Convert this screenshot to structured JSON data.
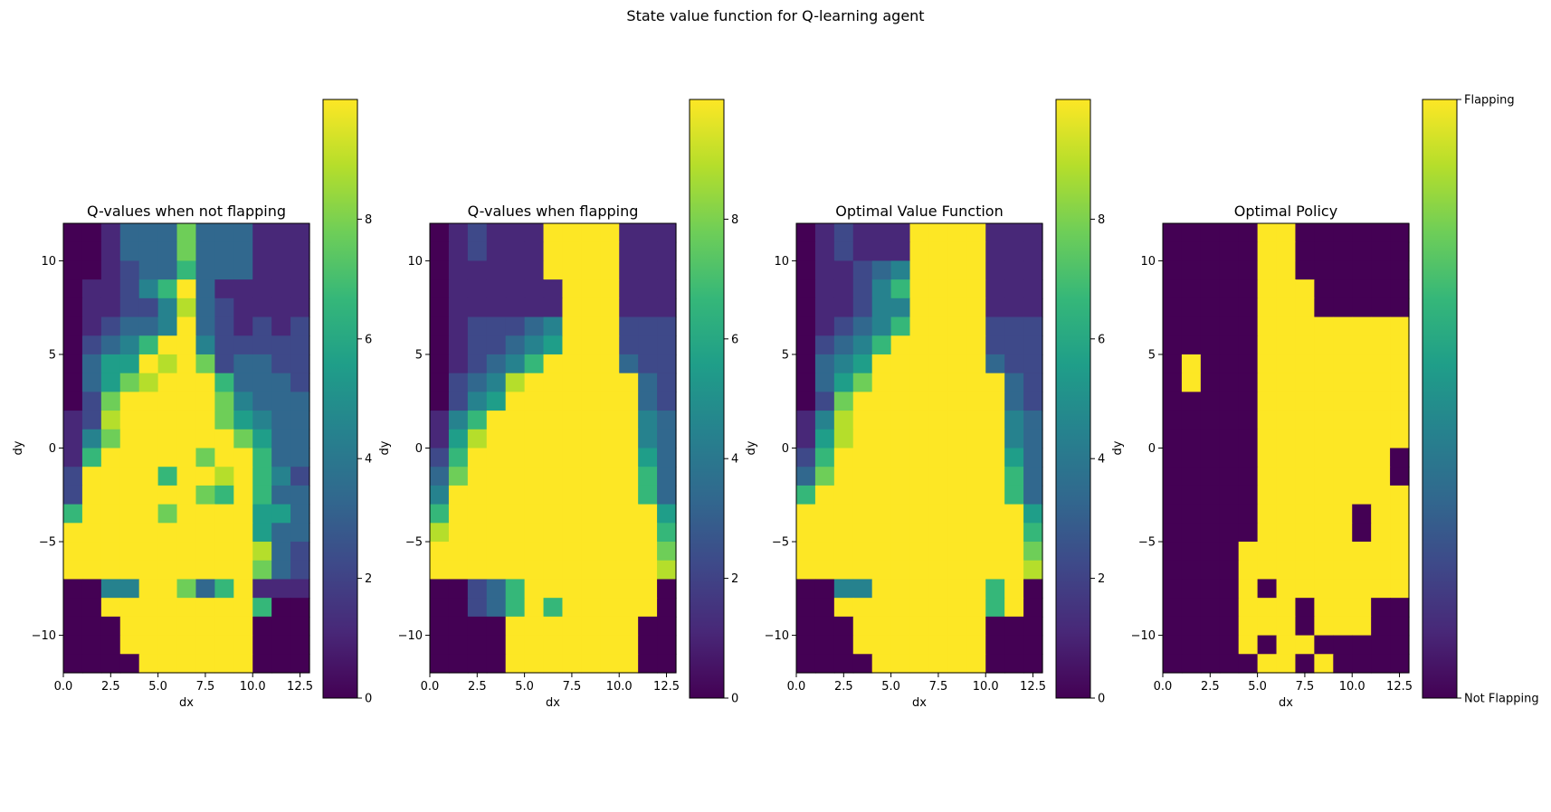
{
  "suptitle": "State value function for Q-learning agent",
  "colors": {
    "viridis": [
      "#440154",
      "#482878",
      "#3e4989",
      "#31688e",
      "#26828e",
      "#1f9e89",
      "#35b779",
      "#6ece58",
      "#b5de2b",
      "#fde725"
    ]
  },
  "chart_data": [
    {
      "type": "heatmap",
      "title": "Q-values when not flapping",
      "xlabel": "dx",
      "ylabel": "dy",
      "xlim": [
        0,
        13
      ],
      "ylim": [
        -12,
        12
      ],
      "xticks": [
        0.0,
        2.5,
        5.0,
        7.5,
        10.0,
        12.5
      ],
      "xtick_labels": [
        "0.0",
        "2.5",
        "5.0",
        "7.5",
        "10.0",
        "12.5"
      ],
      "yticks": [
        10,
        5,
        0,
        -5,
        -10
      ],
      "ytick_labels": [
        "10",
        "5",
        "0",
        "−5",
        "−10"
      ],
      "x_cells": 13,
      "y_cells": 24,
      "colorbar": {
        "range": [
          0,
          10
        ],
        "ticks": [
          0,
          2,
          4,
          6,
          8
        ],
        "tick_labels": [
          "0",
          "2",
          "4",
          "6",
          "8"
        ]
      },
      "grid_rows_top_to_bottom": [
        "0013337333111",
        "0013337333111",
        "0012336333111",
        "0112469311111",
        "0112248321111",
        "0123349321212",
        "0234699422222",
        "0355989723322",
        "0357899963332",
        "0279999974333",
        "1289999975433",
        "1479999997533",
        "1699999799633",
        "2999969989642",
        "2999999769633",
        "6999979999553",
        "9999999999533",
        "9999999999832",
        "9999999999732",
        "0044997369111",
        "0099999999600",
        "0009999999000",
        "0009999999000",
        "0000999999000"
      ]
    },
    {
      "type": "heatmap",
      "title": "Q-values when flapping",
      "xlabel": "dx",
      "ylabel": "dy",
      "xlim": [
        0,
        13
      ],
      "ylim": [
        -12,
        12
      ],
      "xticks": [
        0.0,
        2.5,
        5.0,
        7.5,
        10.0,
        12.5
      ],
      "xtick_labels": [
        "0.0",
        "2.5",
        "5.0",
        "7.5",
        "10.0",
        "12.5"
      ],
      "yticks": [
        10,
        5,
        0,
        -5,
        -10
      ],
      "ytick_labels": [
        "10",
        "5",
        "0",
        "−5",
        "−10"
      ],
      "x_cells": 13,
      "y_cells": 24,
      "colorbar": {
        "range": [
          0,
          10
        ],
        "ticks": [
          0,
          2,
          4,
          6,
          8
        ],
        "tick_labels": [
          "0",
          "2",
          "4",
          "6",
          "8"
        ]
      },
      "grid_rows_top_to_bottom": [
        "0121119999111",
        "0121119999111",
        "0111119999111",
        "0111111999111",
        "0111111999111",
        "0122234999222",
        "0122345999222",
        "0123469999322",
        "0234899999932",
        "0245999999932",
        "1469999999943",
        "1589999999943",
        "2699999999953",
        "3799999999963",
        "4999999999963",
        "6999999999995",
        "8999999999996",
        "9999999999997",
        "9999999999998",
        "0023699999990",
        "0023696999990",
        "0000999999900",
        "0000999999900",
        "0000999999900"
      ]
    },
    {
      "type": "heatmap",
      "title": "Optimal Value Function",
      "xlabel": "dx",
      "ylabel": "dy",
      "xlim": [
        0,
        13
      ],
      "ylim": [
        -12,
        12
      ],
      "xticks": [
        0.0,
        2.5,
        5.0,
        7.5,
        10.0,
        12.5
      ],
      "xtick_labels": [
        "0.0",
        "2.5",
        "5.0",
        "7.5",
        "10.0",
        "12.5"
      ],
      "yticks": [
        10,
        5,
        0,
        -5,
        -10
      ],
      "ytick_labels": [
        "10",
        "5",
        "0",
        "−5",
        "−10"
      ],
      "x_cells": 13,
      "y_cells": 24,
      "colorbar": {
        "range": [
          0,
          10
        ],
        "ticks": [
          0,
          2,
          4,
          6,
          8
        ],
        "tick_labels": [
          "0",
          "2",
          "4",
          "6",
          "8"
        ]
      },
      "grid_rows_top_to_bottom": [
        "0121119999111",
        "0121119999111",
        "0112349999111",
        "0112469999111",
        "0112449999111",
        "0123469999222",
        "0234699999222",
        "0345999999322",
        "0357999999932",
        "0279999999932",
        "1489999999943",
        "1589999999943",
        "2699999999953",
        "3799999999963",
        "6999999999963",
        "9999999999995",
        "9999999999996",
        "9999999999997",
        "9999999999998",
        "0044999999690",
        "0099999999690",
        "0009999999000",
        "0009999999000",
        "0000999999000"
      ]
    },
    {
      "type": "heatmap",
      "title": "Optimal Policy",
      "xlabel": "dx",
      "ylabel": "dy",
      "xlim": [
        0,
        13
      ],
      "ylim": [
        -12,
        12
      ],
      "xticks": [
        0.0,
        2.5,
        5.0,
        7.5,
        10.0,
        12.5
      ],
      "xtick_labels": [
        "0.0",
        "2.5",
        "5.0",
        "7.5",
        "10.0",
        "12.5"
      ],
      "yticks": [
        10,
        5,
        0,
        -5,
        -10
      ],
      "ytick_labels": [
        "10",
        "5",
        "0",
        "−5",
        "−10"
      ],
      "x_cells": 13,
      "y_cells": 24,
      "colorbar": {
        "range": [
          0,
          1
        ],
        "ticks": [
          1,
          0
        ],
        "tick_labels": [
          "Flapping",
          "Not Flapping"
        ]
      },
      "grid_rows_top_to_bottom": [
        "0000011000000",
        "0000011000000",
        "0000011000000",
        "0000011100000",
        "0000011100000",
        "0000011111111",
        "0000011111111",
        "0100011111111",
        "0100011111111",
        "0000011111111",
        "0000011111111",
        "0000011111111",
        "0000011111110",
        "0000011111110",
        "0000011111111",
        "0000011111011",
        "0000011111011",
        "0000111111111",
        "0000111111111",
        "0000101111111",
        "0000111011100",
        "0000111011100",
        "0000101100000",
        "0000011010000"
      ]
    }
  ]
}
